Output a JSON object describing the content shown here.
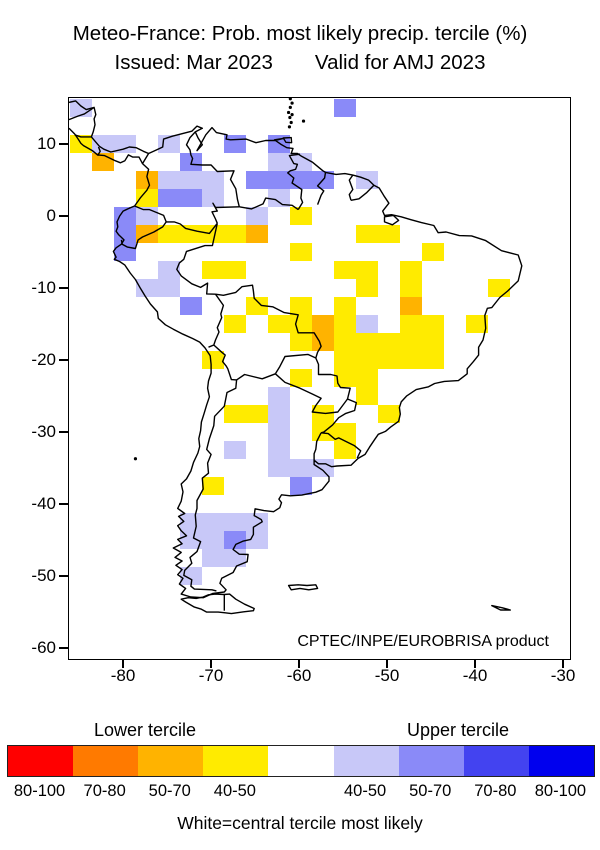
{
  "title": {
    "line1": "Meteo-France: Prob. most likely precip. tercile (%)",
    "line2_issued": "Issued: Mar 2023",
    "line2_valid": "Valid for AMJ 2023"
  },
  "map": {
    "credit": "CPTEC/INPE/EUROBRISA product",
    "x_axis_ticks": [
      "-80",
      "-70",
      "-60",
      "-50",
      "-40",
      "-30"
    ],
    "y_axis_ticks": [
      "10",
      "0",
      "-10",
      "-20",
      "-30",
      "-40",
      "-50",
      "-60"
    ],
    "cell_colors": {
      "ly": "#FFEB00",
      "lo": "#FFB300",
      "ub1": "#C8C8F8",
      "ub2": "#8A8AF8"
    },
    "cells": [
      [
        0,
        0,
        "ub1"
      ],
      [
        12,
        0,
        "ub2"
      ],
      [
        0,
        2,
        "ly"
      ],
      [
        1,
        2,
        "ub1"
      ],
      [
        2,
        2,
        "ub1"
      ],
      [
        4,
        2,
        "ub1"
      ],
      [
        7,
        2,
        "ub2"
      ],
      [
        9,
        2,
        "ub2"
      ],
      [
        1,
        3,
        "lo"
      ],
      [
        5,
        3,
        "ub2"
      ],
      [
        9,
        3,
        "ub1"
      ],
      [
        10,
        3,
        "ub1"
      ],
      [
        3,
        4,
        "lo"
      ],
      [
        4,
        4,
        "ub1"
      ],
      [
        5,
        4,
        "ub1"
      ],
      [
        6,
        4,
        "ub1"
      ],
      [
        8,
        4,
        "ub2"
      ],
      [
        9,
        4,
        "ub2"
      ],
      [
        10,
        4,
        "ub2"
      ],
      [
        11,
        4,
        "ub2"
      ],
      [
        13,
        4,
        "ub1"
      ],
      [
        3,
        5,
        "ly"
      ],
      [
        4,
        5,
        "ub2"
      ],
      [
        5,
        5,
        "ub2"
      ],
      [
        6,
        5,
        "ub1"
      ],
      [
        9,
        5,
        "ub1"
      ],
      [
        2,
        6,
        "ub2"
      ],
      [
        3,
        6,
        "ub1"
      ],
      [
        8,
        6,
        "ub1"
      ],
      [
        10,
        6,
        "ly"
      ],
      [
        2,
        7,
        "ub2"
      ],
      [
        3,
        7,
        "lo"
      ],
      [
        4,
        7,
        "ly"
      ],
      [
        5,
        7,
        "ly"
      ],
      [
        6,
        7,
        "ly"
      ],
      [
        7,
        7,
        "ly"
      ],
      [
        8,
        7,
        "lo"
      ],
      [
        13,
        7,
        "ly"
      ],
      [
        14,
        7,
        "ly"
      ],
      [
        2,
        8,
        "ub2"
      ],
      [
        10,
        8,
        "ly"
      ],
      [
        16,
        8,
        "ly"
      ],
      [
        4,
        9,
        "ub1"
      ],
      [
        6,
        9,
        "ly"
      ],
      [
        7,
        9,
        "ly"
      ],
      [
        12,
        9,
        "ly"
      ],
      [
        13,
        9,
        "ly"
      ],
      [
        15,
        9,
        "ly"
      ],
      [
        3,
        10,
        "ub1"
      ],
      [
        4,
        10,
        "ub1"
      ],
      [
        13,
        10,
        "ly"
      ],
      [
        15,
        10,
        "ly"
      ],
      [
        19,
        10,
        "ly"
      ],
      [
        5,
        11,
        "ub2"
      ],
      [
        8,
        11,
        "ly"
      ],
      [
        10,
        11,
        "ly"
      ],
      [
        12,
        11,
        "ly"
      ],
      [
        15,
        11,
        "lo"
      ],
      [
        7,
        12,
        "ly"
      ],
      [
        9,
        12,
        "ly"
      ],
      [
        10,
        12,
        "ly"
      ],
      [
        11,
        12,
        "lo"
      ],
      [
        12,
        12,
        "ly"
      ],
      [
        13,
        12,
        "ub1"
      ],
      [
        15,
        12,
        "ly"
      ],
      [
        16,
        12,
        "ly"
      ],
      [
        18,
        12,
        "ly"
      ],
      [
        10,
        13,
        "ly"
      ],
      [
        11,
        13,
        "lo"
      ],
      [
        12,
        13,
        "ly"
      ],
      [
        13,
        13,
        "ly"
      ],
      [
        14,
        13,
        "ly"
      ],
      [
        15,
        13,
        "ly"
      ],
      [
        16,
        13,
        "ly"
      ],
      [
        6,
        14,
        "ly"
      ],
      [
        12,
        14,
        "ly"
      ],
      [
        13,
        14,
        "ly"
      ],
      [
        14,
        14,
        "ly"
      ],
      [
        15,
        14,
        "ly"
      ],
      [
        16,
        14,
        "ly"
      ],
      [
        10,
        15,
        "ly"
      ],
      [
        12,
        15,
        "ly"
      ],
      [
        13,
        15,
        "ly"
      ],
      [
        9,
        16,
        "ub1"
      ],
      [
        13,
        16,
        "ly"
      ],
      [
        7,
        17,
        "ly"
      ],
      [
        8,
        17,
        "ly"
      ],
      [
        9,
        17,
        "ub1"
      ],
      [
        11,
        17,
        "ly"
      ],
      [
        14,
        17,
        "ly"
      ],
      [
        9,
        18,
        "ub1"
      ],
      [
        11,
        18,
        "ly"
      ],
      [
        12,
        18,
        "ly"
      ],
      [
        7,
        19,
        "ub1"
      ],
      [
        9,
        19,
        "ub1"
      ],
      [
        12,
        19,
        "ly"
      ],
      [
        9,
        20,
        "ub1"
      ],
      [
        10,
        20,
        "ub1"
      ],
      [
        11,
        20,
        "ub1"
      ],
      [
        6,
        21,
        "ly"
      ],
      [
        10,
        21,
        "ub2"
      ],
      [
        5,
        23,
        "ub1"
      ],
      [
        6,
        23,
        "ub1"
      ],
      [
        7,
        23,
        "ub1"
      ],
      [
        8,
        23,
        "ub1"
      ],
      [
        5,
        24,
        "ub1"
      ],
      [
        6,
        24,
        "ub1"
      ],
      [
        7,
        24,
        "ub2"
      ],
      [
        8,
        24,
        "ub1"
      ],
      [
        6,
        25,
        "ub1"
      ],
      [
        7,
        25,
        "ub1"
      ],
      [
        5,
        26,
        "ub1"
      ]
    ]
  },
  "legend": {
    "lower_title": "Lower tercile",
    "upper_title": "Upper tercile",
    "segments": [
      {
        "color": "#FF0000",
        "label": "80-100"
      },
      {
        "color": "#FF7A00",
        "label": "70-80"
      },
      {
        "color": "#FFB300",
        "label": "50-70"
      },
      {
        "color": "#FFEB00",
        "label": "40-50"
      },
      {
        "color": "#FFFFFF",
        "label": ""
      },
      {
        "color": "#C8C8F8",
        "label": "40-50"
      },
      {
        "color": "#8A8AF8",
        "label": "50-70"
      },
      {
        "color": "#4343F0",
        "label": "70-80"
      },
      {
        "color": "#0000EE",
        "label": "80-100"
      }
    ],
    "caption": "White=central tercile most likely"
  }
}
